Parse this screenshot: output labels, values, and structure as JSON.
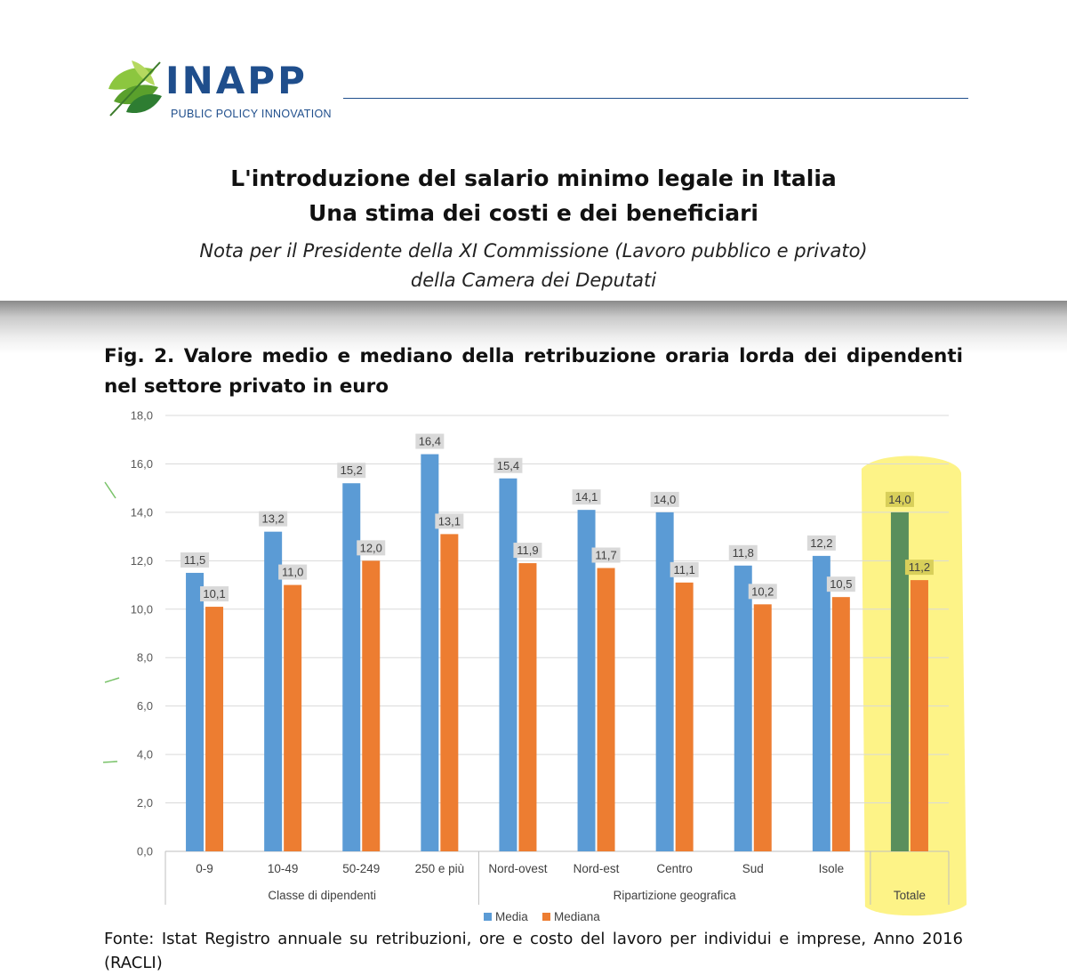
{
  "header": {
    "logo_text": "INAPP",
    "logo_subtitle": "PUBLIC POLICY INNOVATION",
    "title_line1": "L'introduzione del salario minimo legale in Italia",
    "title_line2": "Una stima dei costi e dei beneficiari",
    "note_line1": "Nota per il Presidente della XI Commissione (Lavoro pubblico e privato)",
    "note_line2": "della Camera dei Deputati"
  },
  "figure": {
    "caption": "Fig. 2. Valore medio e mediano della retribuzione oraria lorda dei dipendenti nel settore privato in euro",
    "footnote": "Fonte: Istat Registro annuale su retribuzioni, ore e costo del lavoro per individui e imprese, Anno 2016 (RACLI)"
  },
  "colors": {
    "media": "#5b9bd5",
    "mediana": "#ed7d31",
    "totale_media": "#5a8f5c",
    "highlight": "#fdf27a",
    "brand": "#1f4e8c"
  },
  "chart_data": {
    "type": "bar",
    "categories": [
      "0-9",
      "10-49",
      "50-249",
      "250 e più",
      "Nord-ovest",
      "Nord-est",
      "Centro",
      "Sud",
      "Isole",
      ""
    ],
    "groups": [
      {
        "label": "Classe di dipendenti",
        "categories": [
          "0-9",
          "10-49",
          "50-249",
          "250 e più"
        ]
      },
      {
        "label": "Ripartizione geografica",
        "categories": [
          "Nord-ovest",
          "Nord-est",
          "Centro",
          "Sud",
          "Isole"
        ]
      },
      {
        "label": "Totale",
        "categories": [
          ""
        ]
      }
    ],
    "series": [
      {
        "name": "Media",
        "values": [
          11.5,
          13.2,
          15.2,
          16.4,
          15.4,
          14.1,
          14.0,
          11.8,
          12.2,
          14.0
        ]
      },
      {
        "name": "Mediana",
        "values": [
          10.1,
          11.0,
          12.0,
          13.1,
          11.9,
          11.7,
          11.1,
          10.2,
          10.5,
          11.2
        ]
      }
    ],
    "value_labels": {
      "Media": [
        "11,5",
        "13,2",
        "15,2",
        "16,4",
        "15,4",
        "14,1",
        "14,0",
        "11,8",
        "12,2",
        "14,0"
      ],
      "Mediana": [
        "10,1",
        "11,0",
        "12,0",
        "13,1",
        "11,9",
        "11,7",
        "11,1",
        "10,2",
        "10,5",
        "11,2"
      ]
    },
    "ylim": [
      0,
      18
    ],
    "yticks": [
      "0,0",
      "2,0",
      "4,0",
      "6,0",
      "8,0",
      "10,0",
      "12,0",
      "14,0",
      "16,0",
      "18,0"
    ],
    "grid": true,
    "legend_position": "bottom",
    "highlight": "Totale"
  }
}
